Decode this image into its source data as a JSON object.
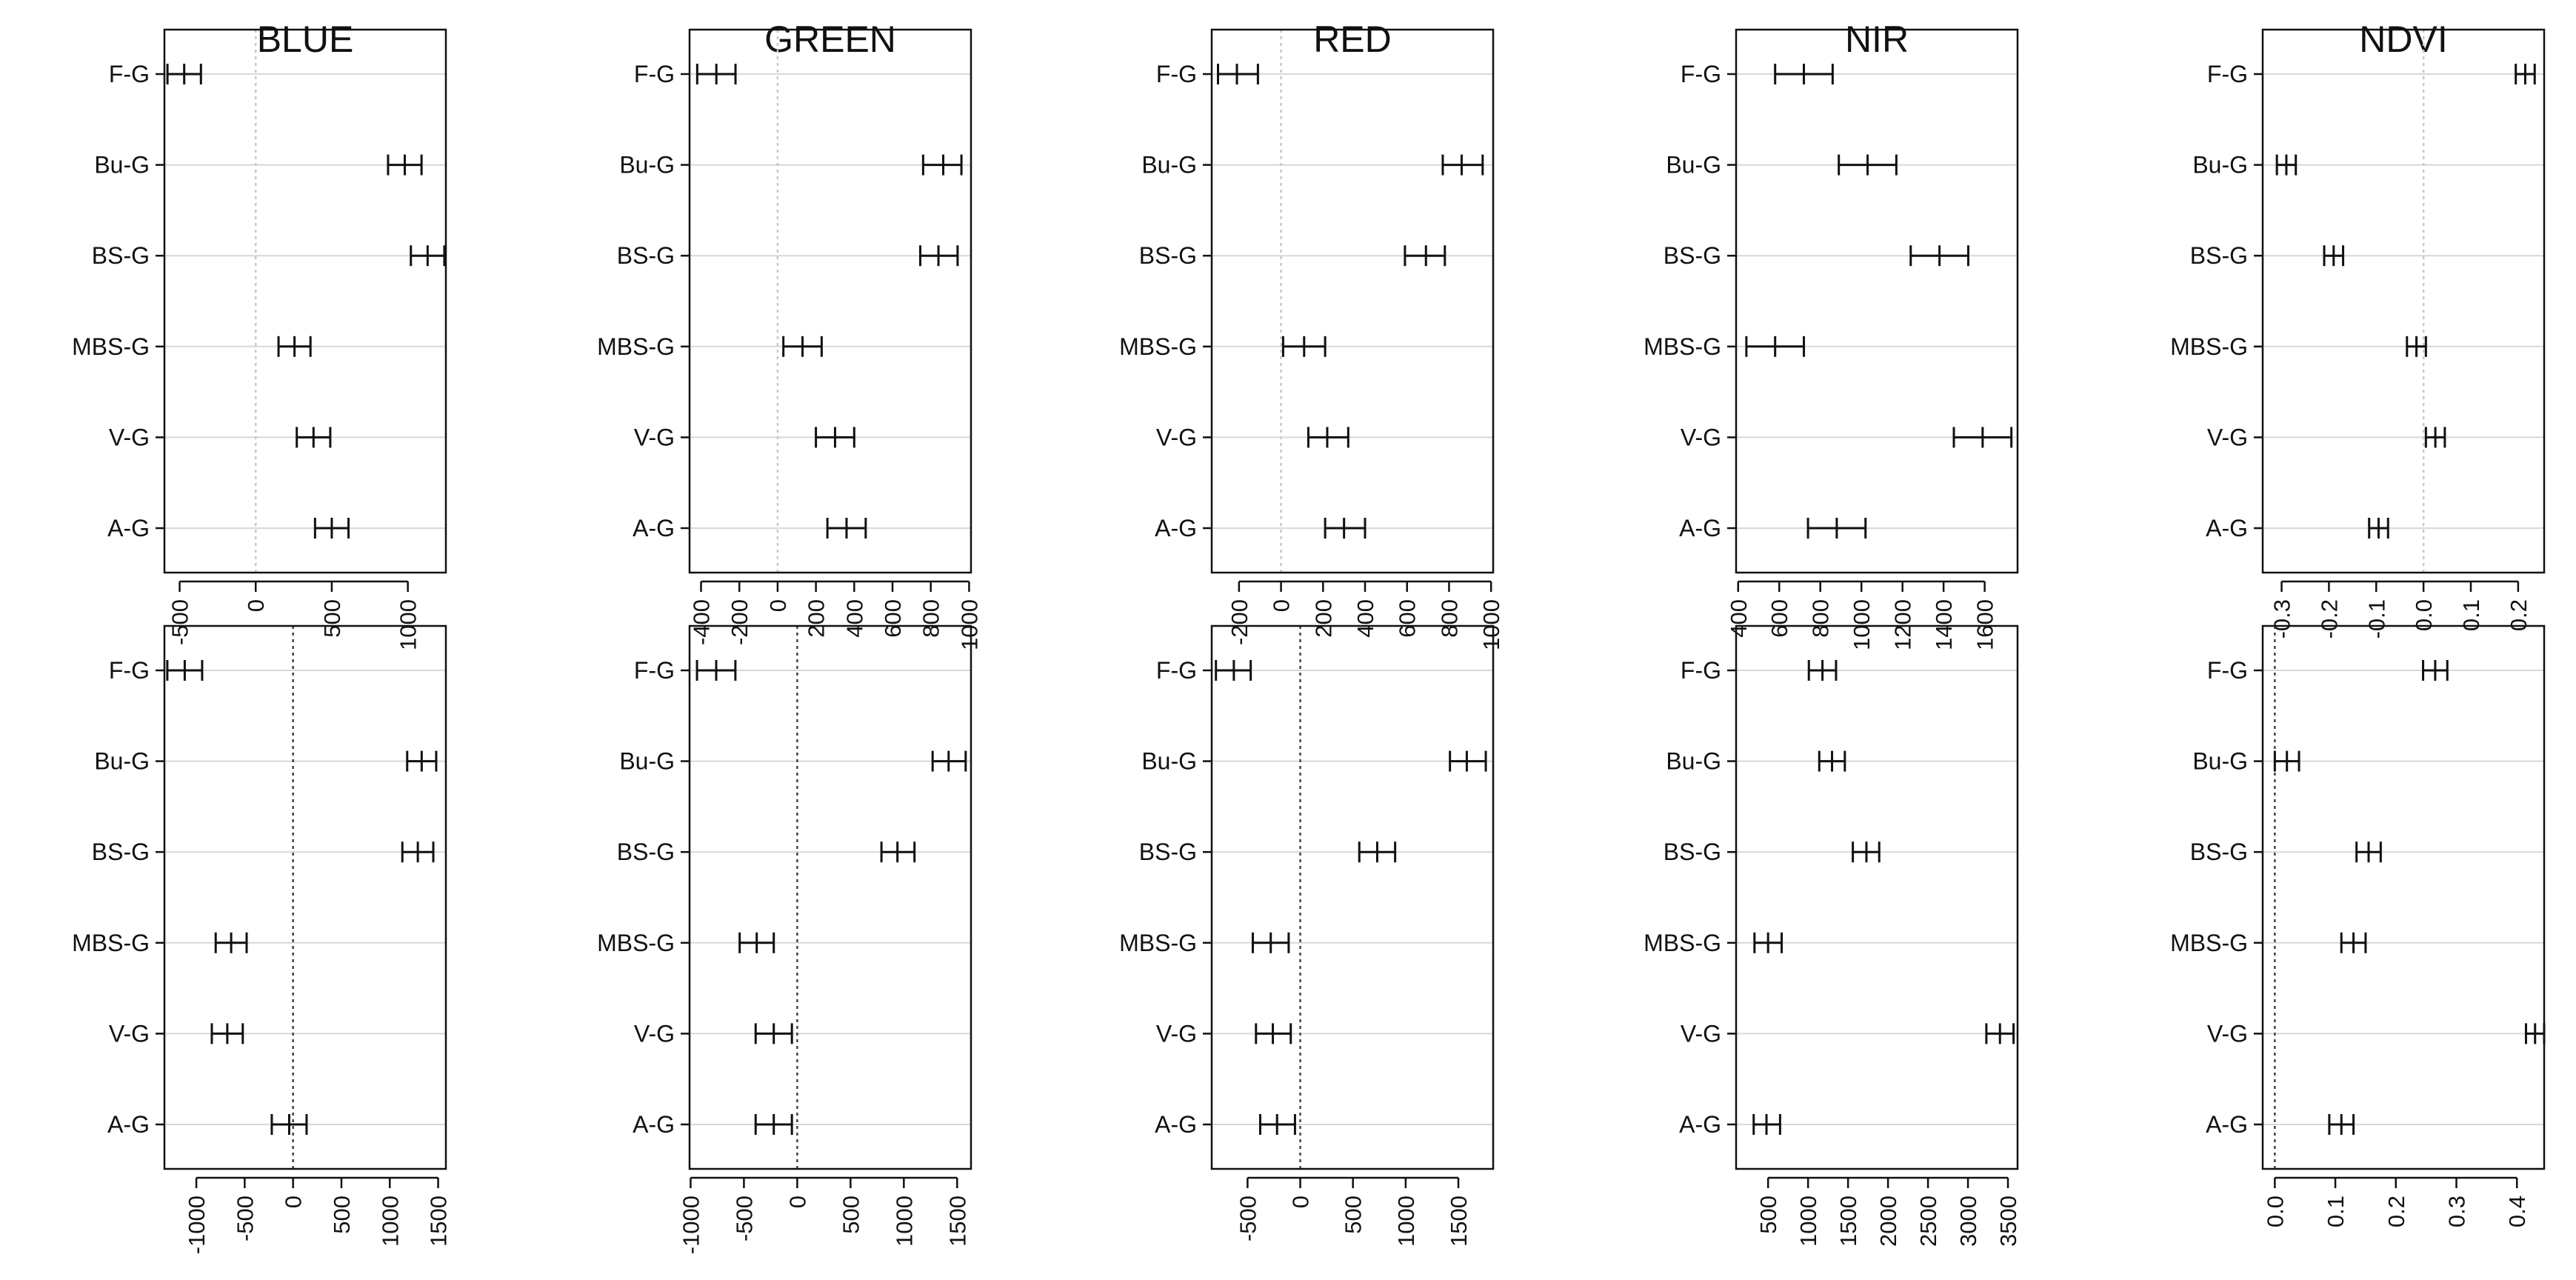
{
  "chart_data": {
    "type": "interval",
    "categories": [
      "F-G",
      "Bu-G",
      "BS-G",
      "MBS-G",
      "V-G",
      "A-G"
    ],
    "panels": [
      {
        "row": 1,
        "title": "BLUE",
        "xlim": [
          -600,
          1250
        ],
        "ticks": [
          -500,
          0,
          500,
          1000
        ],
        "tick_labels": [
          "-500",
          "0",
          "500",
          "1000"
        ],
        "ref_line": 0,
        "ref_style": "light",
        "intervals": [
          {
            "lo": -580,
            "mid": -470,
            "hi": -360
          },
          {
            "lo": 870,
            "mid": 980,
            "hi": 1090
          },
          {
            "lo": 1020,
            "mid": 1130,
            "hi": 1240
          },
          {
            "lo": 150,
            "mid": 255,
            "hi": 360
          },
          {
            "lo": 270,
            "mid": 380,
            "hi": 490
          },
          {
            "lo": 390,
            "mid": 500,
            "hi": 610
          }
        ]
      },
      {
        "row": 1,
        "title": "GREEN",
        "xlim": [
          -460,
          1010
        ],
        "ticks": [
          -400,
          -200,
          0,
          200,
          400,
          600,
          800,
          1000
        ],
        "tick_labels": [
          "-400",
          "-200",
          "0",
          "200",
          "400",
          "600",
          "800",
          "1000"
        ],
        "ref_line": 0,
        "ref_style": "light",
        "intervals": [
          {
            "lo": -420,
            "mid": -320,
            "hi": -220
          },
          {
            "lo": 760,
            "mid": 865,
            "hi": 960
          },
          {
            "lo": 745,
            "mid": 840,
            "hi": 940
          },
          {
            "lo": 30,
            "mid": 130,
            "hi": 230
          },
          {
            "lo": 200,
            "mid": 300,
            "hi": 400
          },
          {
            "lo": 260,
            "mid": 360,
            "hi": 460
          }
        ]
      },
      {
        "row": 1,
        "title": "RED",
        "xlim": [
          -330,
          1010
        ],
        "ticks": [
          -200,
          0,
          200,
          400,
          600,
          800,
          1000
        ],
        "tick_labels": [
          "-200",
          "0",
          "200",
          "400",
          "600",
          "800",
          "1000"
        ],
        "ref_line": 0,
        "ref_style": "light",
        "intervals": [
          {
            "lo": -300,
            "mid": -210,
            "hi": -110
          },
          {
            "lo": 770,
            "mid": 860,
            "hi": 960
          },
          {
            "lo": 590,
            "mid": 690,
            "hi": 780
          },
          {
            "lo": 10,
            "mid": 110,
            "hi": 210
          },
          {
            "lo": 130,
            "mid": 220,
            "hi": 320
          },
          {
            "lo": 210,
            "mid": 300,
            "hi": 400
          }
        ]
      },
      {
        "row": 1,
        "title": "NIR",
        "xlim": [
          390,
          1760
        ],
        "ticks": [
          400,
          600,
          800,
          1000,
          1200,
          1400,
          1600
        ],
        "tick_labels": [
          "400",
          "600",
          "800",
          "1000",
          "1200",
          "1400",
          "1600"
        ],
        "ref_line": null,
        "ref_style": "none",
        "intervals": [
          {
            "lo": 580,
            "mid": 720,
            "hi": 860
          },
          {
            "lo": 890,
            "mid": 1030,
            "hi": 1170
          },
          {
            "lo": 1240,
            "mid": 1380,
            "hi": 1520
          },
          {
            "lo": 440,
            "mid": 580,
            "hi": 720
          },
          {
            "lo": 1450,
            "mid": 1590,
            "hi": 1730
          },
          {
            "lo": 740,
            "mid": 880,
            "hi": 1020
          }
        ]
      },
      {
        "row": 1,
        "title": "NDVI",
        "xlim": [
          -0.34,
          0.255
        ],
        "ticks": [
          -0.3,
          -0.2,
          -0.1,
          0.0,
          0.1,
          0.2
        ],
        "tick_labels": [
          "-0.3",
          "-0.2",
          "-0.1",
          "0.0",
          "0.1",
          "0.2"
        ],
        "ref_line": 0,
        "ref_style": "light",
        "intervals": [
          {
            "lo": 0.195,
            "mid": 0.215,
            "hi": 0.235
          },
          {
            "lo": -0.31,
            "mid": -0.29,
            "hi": -0.27
          },
          {
            "lo": -0.21,
            "mid": -0.19,
            "hi": -0.17
          },
          {
            "lo": -0.035,
            "mid": -0.015,
            "hi": 0.005
          },
          {
            "lo": 0.005,
            "mid": 0.025,
            "hi": 0.045
          },
          {
            "lo": -0.115,
            "mid": -0.095,
            "hi": -0.075
          }
        ]
      },
      {
        "row": 2,
        "title": "",
        "xlim": [
          -1330,
          1580
        ],
        "ticks": [
          -1000,
          -500,
          0,
          500,
          1000,
          1500
        ],
        "tick_labels": [
          "-1000",
          "-500",
          "0",
          "500",
          "1000",
          "1500"
        ],
        "ref_line": 0,
        "ref_style": "dark",
        "intervals": [
          {
            "lo": -1300,
            "mid": -1120,
            "hi": -940
          },
          {
            "lo": 1180,
            "mid": 1330,
            "hi": 1480
          },
          {
            "lo": 1130,
            "mid": 1290,
            "hi": 1450
          },
          {
            "lo": -800,
            "mid": -640,
            "hi": -480
          },
          {
            "lo": -840,
            "mid": -680,
            "hi": -520
          },
          {
            "lo": -220,
            "mid": -40,
            "hi": 140
          }
        ]
      },
      {
        "row": 2,
        "title": "",
        "xlim": [
          -1010,
          1630
        ],
        "ticks": [
          -1000,
          -500,
          0,
          500,
          1000,
          1500
        ],
        "tick_labels": [
          "-1000",
          "-500",
          "0",
          "500",
          "1000",
          "1500"
        ],
        "ref_line": 0,
        "ref_style": "dark",
        "intervals": [
          {
            "lo": -940,
            "mid": -760,
            "hi": -580
          },
          {
            "lo": 1270,
            "mid": 1420,
            "hi": 1580
          },
          {
            "lo": 790,
            "mid": 940,
            "hi": 1100
          },
          {
            "lo": -540,
            "mid": -380,
            "hi": -220
          },
          {
            "lo": -390,
            "mid": -220,
            "hi": -50
          },
          {
            "lo": -390,
            "mid": -220,
            "hi": -50
          }
        ]
      },
      {
        "row": 2,
        "title": "",
        "xlim": [
          -840,
          1830
        ],
        "ticks": [
          -500,
          0,
          500,
          1000,
          1500
        ],
        "tick_labels": [
          "-500",
          "0",
          "500",
          "1000",
          "1500"
        ],
        "ref_line": 0,
        "ref_style": "dark",
        "intervals": [
          {
            "lo": -800,
            "mid": -630,
            "hi": -470
          },
          {
            "lo": 1420,
            "mid": 1580,
            "hi": 1760
          },
          {
            "lo": 560,
            "mid": 730,
            "hi": 900
          },
          {
            "lo": -450,
            "mid": -280,
            "hi": -110
          },
          {
            "lo": -420,
            "mid": -260,
            "hi": -90
          },
          {
            "lo": -380,
            "mid": -220,
            "hi": -50
          }
        ]
      },
      {
        "row": 2,
        "title": "",
        "xlim": [
          100,
          3620
        ],
        "ticks": [
          500,
          1000,
          1500,
          2000,
          2500,
          3000,
          3500
        ],
        "tick_labels": [
          "500",
          "1000",
          "1500",
          "2000",
          "2500",
          "3000",
          "3500"
        ],
        "ref_line": null,
        "ref_style": "none",
        "intervals": [
          {
            "lo": 1010,
            "mid": 1180,
            "hi": 1350
          },
          {
            "lo": 1140,
            "mid": 1300,
            "hi": 1460
          },
          {
            "lo": 1560,
            "mid": 1730,
            "hi": 1890
          },
          {
            "lo": 330,
            "mid": 500,
            "hi": 670
          },
          {
            "lo": 3230,
            "mid": 3400,
            "hi": 3570
          },
          {
            "lo": 320,
            "mid": 480,
            "hi": 650
          }
        ]
      },
      {
        "row": 2,
        "title": "",
        "xlim": [
          -0.02,
          0.445
        ],
        "ticks": [
          0.0,
          0.1,
          0.2,
          0.3,
          0.4
        ],
        "tick_labels": [
          "0.0",
          "0.1",
          "0.2",
          "0.3",
          "0.4"
        ],
        "ref_line": 0,
        "ref_style": "dark",
        "intervals": [
          {
            "lo": 0.245,
            "mid": 0.265,
            "hi": 0.285
          },
          {
            "lo": 0.0,
            "mid": 0.02,
            "hi": 0.04
          },
          {
            "lo": 0.135,
            "mid": 0.155,
            "hi": 0.175
          },
          {
            "lo": 0.11,
            "mid": 0.13,
            "hi": 0.15
          },
          {
            "lo": 0.415,
            "mid": 0.43,
            "hi": 0.445
          },
          {
            "lo": 0.09,
            "mid": 0.11,
            "hi": 0.13
          }
        ]
      }
    ],
    "xlabel": "",
    "ylabel": "",
    "grid": true
  }
}
